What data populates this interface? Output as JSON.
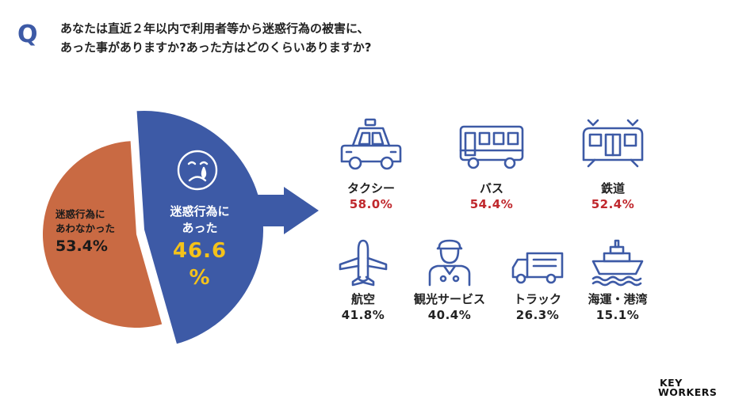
{
  "question": {
    "mark": "Q",
    "line1": "あなたは直近２年以内で利用者等から迷惑行為の被害に、",
    "line2": "あった事がありますか?あった方はどのくらいありますか?"
  },
  "chart_data": [
    {
      "type": "pie",
      "slices": [
        {
          "label_line1": "迷惑行為に",
          "label_line2": "あった",
          "value": 46.6,
          "display": "46.6",
          "unit": "%",
          "color": "#3d5aa6"
        },
        {
          "label_line1": "迷惑行為に",
          "label_line2": "あわなかった",
          "value": 53.4,
          "display": "53.4%",
          "color": "#c96a43"
        }
      ]
    },
    {
      "type": "table",
      "categories": [
        "タクシー",
        "バス",
        "鉄道",
        "航空",
        "観光サービス",
        "トラック",
        "海運・港湾"
      ],
      "values": [
        58.0,
        54.4,
        52.4,
        41.8,
        40.4,
        26.3,
        15.1
      ],
      "labels": [
        "58.0%",
        "54.4%",
        "52.4%",
        "41.8%",
        "40.4%",
        "26.3%",
        "15.1%"
      ],
      "icons": [
        "taxi-icon",
        "bus-icon",
        "train-icon",
        "airplane-icon",
        "tour-guide-icon",
        "truck-icon",
        "ship-icon"
      ],
      "highlight_color": "#c0282d"
    }
  ],
  "colors": {
    "accent": "#3d5aa6",
    "orange": "#c96a43",
    "yellow": "#f4c21a",
    "red": "#c0282d"
  },
  "logo": {
    "line1": "KEY",
    "line2": "WORKERS"
  }
}
